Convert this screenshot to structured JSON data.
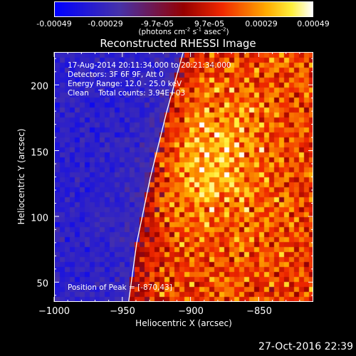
{
  "colorbar": {
    "tick_labels": [
      "-0.00049",
      "-0.00029",
      "-9.7e-05",
      "9.7e-05",
      "0.00029",
      "0.00049"
    ],
    "units_prefix": "(photons cm",
    "units_exp1": "-2",
    "units_mid1": " s",
    "units_exp2": "-1",
    "units_mid2": " asec",
    "units_exp3": "-2",
    "units_suffix": ")",
    "colormap": "blue-purple-red-yellow-white"
  },
  "chart_data": {
    "type": "heatmap",
    "title": "Reconstructed RHESSI Image",
    "xlabel": "Heliocentric X (arcsec)",
    "ylabel": "Heliocentric Y (arcsec)",
    "xlim": [
      -1000,
      -810
    ],
    "ylim": [
      35,
      225
    ],
    "x_ticks": [
      -1000,
      -950,
      -900,
      -850
    ],
    "x_tick_labels": [
      "−1000",
      "−950",
      "−900",
      "−850"
    ],
    "y_ticks": [
      50,
      100,
      150,
      200
    ],
    "y_tick_labels": [
      "50",
      "100",
      "150",
      "200"
    ],
    "value_range": [
      -0.00049,
      0.00049
    ],
    "limb_curve": {
      "color": "#ffffff",
      "points": [
        [
          -946,
          35
        ],
        [
          -940,
          80
        ],
        [
          -930,
          130
        ],
        [
          -918,
          180
        ],
        [
          -906,
          225
        ]
      ]
    },
    "peak": [
      -870,
      43
    ]
  },
  "annotations": {
    "time_range": "17-Aug-2014 20:11:34.000 to 20:21:34.000",
    "detectors": "Detectors: 3F 6F 9F, Att 0",
    "energy_range": "Energy Range: 12.0 - 25.0 keV",
    "method_counts": "Clean    Total counts: 3.94E+03",
    "peak_position": "Position of Peak = [-870,43]"
  },
  "footer": {
    "timestamp": "27-Oct-2016 22:39"
  }
}
